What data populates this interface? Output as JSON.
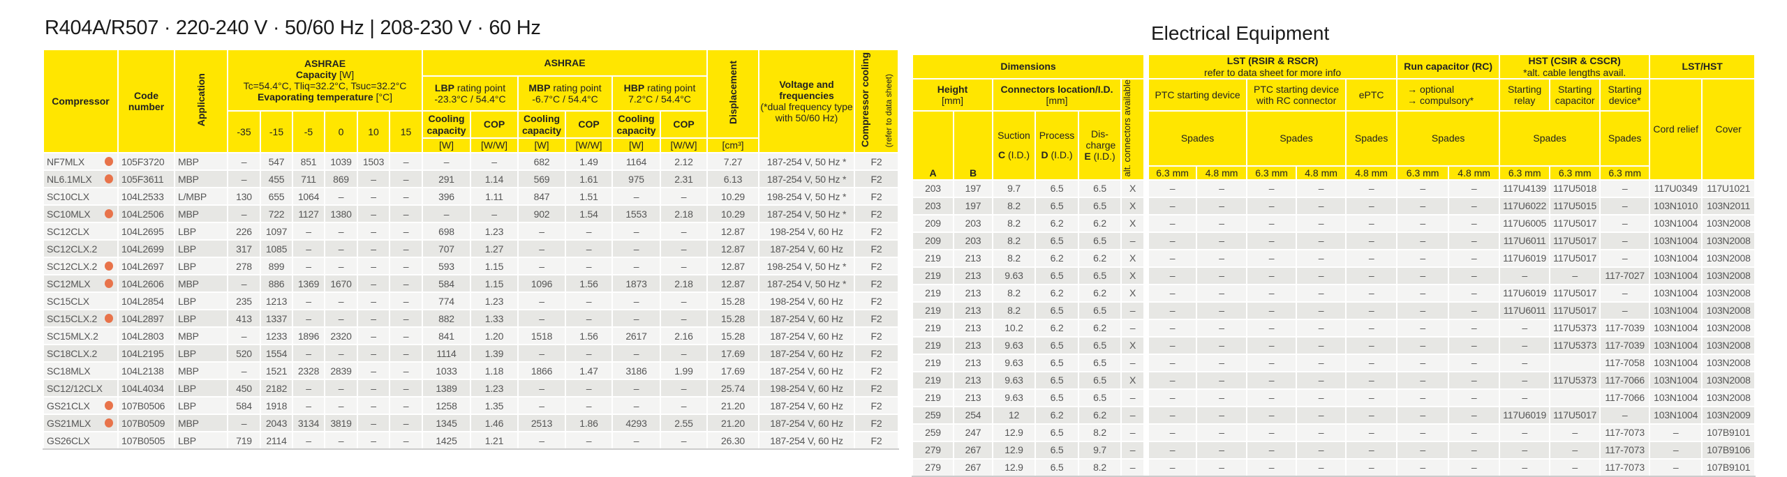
{
  "title": "R404A/R507 · 220-240 V · 50/60 Hz | 208-230 V · 60 Hz",
  "electrical_title": "Electrical Equipment",
  "colors": {
    "header": "#FFE600",
    "row_light": "#F4F4F3",
    "row_dark": "#E7E7E4",
    "dot": "#E8734A"
  },
  "lh": {
    "compressor": "Compressor",
    "code": "Code number",
    "application": "Application",
    "ashrae": "ASHRAE",
    "capacity": "Capacity",
    "unit_w": "[W]",
    "conditions": "Tc=54.4°C, Tliq=32.2°C, Tsuc=32.2°C",
    "evap": "Evaporating temperature",
    "evap_unit": "[°C]",
    "temps": [
      "-35",
      "-15",
      "-5",
      "0",
      "10",
      "15"
    ],
    "lbp": "LBP",
    "mbp": "MBP",
    "hbp": "HBP",
    "rating_point": "rating point",
    "lbp_point": "-23.3°C / 54.4°C",
    "mbp_point": "-6.7°C / 54.4°C",
    "hbp_point": "7.2°C / 54.4°C",
    "cooling_capacity": "Cooling capacity",
    "cop": "COP",
    "unit_ww": "[W/W]",
    "displacement": "Displacement",
    "disp_unit": "[cm³]",
    "voltage": "Voltage and frequencies",
    "voltage_note": "(*dual frequency type with 50/60 Hz)",
    "cooling": "Compressor cooling",
    "cooling_note": "(refer to data sheet)"
  },
  "rh": {
    "dimensions": "Dimensions",
    "height": "Height",
    "mm": "[mm]",
    "connectors": "Connectors location/I.D.",
    "alt": "alt. connectors available",
    "suction": "Suction",
    "process": "Process",
    "discharge": "Dis-charge",
    "a": "A",
    "b": "B",
    "c": "C",
    "d": "D",
    "e": "E",
    "id": "(I.D.)",
    "lst": "LST (RSIR & RSCR)",
    "lst_note": "refer to data sheet for more info",
    "ptc": "PTC starting device",
    "ptc_rc": "PTC starting device with RC connector",
    "eptc": "ePTC",
    "rc": "Run capacitor (RC)",
    "rc_optional": "→ optional",
    "rc_compulsory": "→ compulsory*",
    "hst": "HST (CSIR & CSCR)",
    "hst_note": "*alt. cable lengths avail.",
    "relay": "Starting relay",
    "capacitor": "Starting capacitor",
    "device": "Starting device*",
    "lsthst": "LST/HST",
    "cord": "Cord relief",
    "cover": "Cover",
    "spades": "Spades",
    "mm63": "6.3 mm",
    "mm48": "4.8 mm"
  },
  "compressors": [
    {
      "name": "NF7MLX",
      "dot": true,
      "values": [
        "105F3720",
        "MBP",
        "–",
        "547",
        "851",
        "1039",
        "1503",
        "–",
        "–",
        "–",
        "682",
        "1.49",
        "1164",
        "2.12",
        "7.27",
        "187-254 V, 50 Hz *",
        "F2"
      ]
    },
    {
      "name": "NL6.1MLX",
      "dot": true,
      "values": [
        "105F3611",
        "MBP",
        "–",
        "455",
        "711",
        "869",
        "–",
        "–",
        "291",
        "1.14",
        "569",
        "1.61",
        "975",
        "2.31",
        "6.13",
        "187-254 V, 50 Hz *",
        "F2"
      ]
    },
    {
      "name": "SC10CLX",
      "dot": false,
      "values": [
        "104L2533",
        "L/MBP",
        "130",
        "655",
        "1064",
        "–",
        "–",
        "–",
        "396",
        "1.11",
        "847",
        "1.51",
        "–",
        "–",
        "10.29",
        "198-254 V, 50 Hz *",
        "F2"
      ]
    },
    {
      "name": "SC10MLX",
      "dot": true,
      "values": [
        "104L2506",
        "MBP",
        "–",
        "722",
        "1127",
        "1380",
        "–",
        "–",
        "–",
        "–",
        "902",
        "1.54",
        "1553",
        "2.18",
        "10.29",
        "187-254 V, 50 Hz *",
        "F2"
      ]
    },
    {
      "name": "SC12CLX",
      "dot": false,
      "values": [
        "104L2695",
        "LBP",
        "226",
        "1097",
        "–",
        "–",
        "–",
        "–",
        "698",
        "1.23",
        "–",
        "–",
        "–",
        "–",
        "12.87",
        "198-254 V, 60 Hz",
        "F2"
      ]
    },
    {
      "name": "SC12CLX.2",
      "dot": false,
      "values": [
        "104L2699",
        "LBP",
        "317",
        "1085",
        "–",
        "–",
        "–",
        "–",
        "707",
        "1.27",
        "–",
        "–",
        "–",
        "–",
        "12.87",
        "187-254 V, 60 Hz",
        "F2"
      ]
    },
    {
      "name": "SC12CLX.2",
      "dot": true,
      "values": [
        "104L2697",
        "LBP",
        "278",
        "899",
        "–",
        "–",
        "–",
        "–",
        "593",
        "1.15",
        "–",
        "–",
        "–",
        "–",
        "12.87",
        "198-254 V, 50 Hz *",
        "F2"
      ]
    },
    {
      "name": "SC12MLX",
      "dot": true,
      "values": [
        "104L2606",
        "MBP",
        "–",
        "886",
        "1369",
        "1670",
        "–",
        "–",
        "584",
        "1.15",
        "1096",
        "1.56",
        "1873",
        "2.18",
        "12.87",
        "187-254 V, 50 Hz *",
        "F2"
      ]
    },
    {
      "name": "SC15CLX",
      "dot": false,
      "values": [
        "104L2854",
        "LBP",
        "235",
        "1213",
        "–",
        "–",
        "–",
        "–",
        "774",
        "1.23",
        "–",
        "–",
        "–",
        "–",
        "15.28",
        "198-254 V, 60 Hz",
        "F2"
      ]
    },
    {
      "name": "SC15CLX.2",
      "dot": true,
      "values": [
        "104L2897",
        "LBP",
        "413",
        "1337",
        "–",
        "–",
        "–",
        "–",
        "882",
        "1.33",
        "–",
        "–",
        "–",
        "–",
        "15.28",
        "187-254 V, 60 Hz",
        "F2"
      ]
    },
    {
      "name": "SC15MLX.2",
      "dot": false,
      "values": [
        "104L2803",
        "MBP",
        "–",
        "1233",
        "1896",
        "2320",
        "–",
        "–",
        "841",
        "1.20",
        "1518",
        "1.56",
        "2617",
        "2.16",
        "15.28",
        "187-254 V, 60 Hz",
        "F2"
      ]
    },
    {
      "name": "SC18CLX.2",
      "dot": false,
      "values": [
        "104L2195",
        "LBP",
        "520",
        "1554",
        "–",
        "–",
        "–",
        "–",
        "1114",
        "1.39",
        "–",
        "–",
        "–",
        "–",
        "17.69",
        "187-254 V, 60 Hz",
        "F2"
      ]
    },
    {
      "name": "SC18MLX",
      "dot": false,
      "values": [
        "104L2138",
        "MBP",
        "–",
        "1521",
        "2328",
        "2839",
        "–",
        "–",
        "1033",
        "1.18",
        "1866",
        "1.47",
        "3186",
        "1.99",
        "17.69",
        "187-254 V, 60 Hz",
        "F2"
      ]
    },
    {
      "name": "SC12/12CLX",
      "dot": false,
      "values": [
        "104L4034",
        "LBP",
        "450",
        "2182",
        "–",
        "–",
        "–",
        "–",
        "1389",
        "1.23",
        "–",
        "–",
        "–",
        "–",
        "25.74",
        "198-254 V, 60 Hz",
        "F2"
      ]
    },
    {
      "name": "GS21CLX",
      "dot": true,
      "values": [
        "107B0506",
        "LBP",
        "584",
        "1918",
        "–",
        "–",
        "–",
        "–",
        "1258",
        "1.35",
        "–",
        "–",
        "–",
        "–",
        "21.20",
        "187-254 V, 60 Hz",
        "F2"
      ]
    },
    {
      "name": "GS21MLX",
      "dot": true,
      "values": [
        "107B0509",
        "MBP",
        "–",
        "2043",
        "3134",
        "3819",
        "–",
        "–",
        "1345",
        "1.46",
        "2513",
        "1.86",
        "4293",
        "2.55",
        "21.20",
        "187-254 V, 60 Hz",
        "F2"
      ]
    },
    {
      "name": "GS26CLX",
      "dot": false,
      "values": [
        "107B0505",
        "LBP",
        "719",
        "2114",
        "–",
        "–",
        "–",
        "–",
        "1425",
        "1.21",
        "–",
        "–",
        "–",
        "–",
        "26.30",
        "187-254 V, 60 Hz",
        "F2"
      ]
    }
  ],
  "electrical": [
    [
      "203",
      "197",
      "9.7",
      "6.5",
      "6.5",
      "X",
      "–",
      "–",
      "–",
      "–",
      "–",
      "–",
      "–",
      "117U4139",
      "117U5018",
      "–",
      "117U0349",
      "117U1021"
    ],
    [
      "203",
      "197",
      "8.2",
      "6.5",
      "6.5",
      "X",
      "–",
      "–",
      "–",
      "–",
      "–",
      "–",
      "–",
      "117U6022",
      "117U5015",
      "–",
      "103N1010",
      "103N2011"
    ],
    [
      "209",
      "203",
      "8.2",
      "6.2",
      "6.2",
      "X",
      "–",
      "–",
      "–",
      "–",
      "–",
      "–",
      "–",
      "117U6005",
      "117U5017",
      "–",
      "103N1004",
      "103N2008"
    ],
    [
      "209",
      "203",
      "8.2",
      "6.5",
      "6.5",
      "–",
      "–",
      "–",
      "–",
      "–",
      "–",
      "–",
      "–",
      "117U6011",
      "117U5017",
      "–",
      "103N1004",
      "103N2008"
    ],
    [
      "219",
      "213",
      "8.2",
      "6.2",
      "6.2",
      "X",
      "–",
      "–",
      "–",
      "–",
      "–",
      "–",
      "–",
      "117U6019",
      "117U5017",
      "–",
      "103N1004",
      "103N2008"
    ],
    [
      "219",
      "213",
      "9.63",
      "6.5",
      "6.5",
      "X",
      "–",
      "–",
      "–",
      "–",
      "–",
      "–",
      "–",
      "–",
      "–",
      "117-7027",
      "103N1004",
      "103N2008"
    ],
    [
      "219",
      "213",
      "8.2",
      "6.2",
      "6.2",
      "X",
      "–",
      "–",
      "–",
      "–",
      "–",
      "–",
      "–",
      "117U6019",
      "117U5017",
      "–",
      "103N1004",
      "103N2008"
    ],
    [
      "219",
      "213",
      "8.2",
      "6.5",
      "6.5",
      "–",
      "–",
      "–",
      "–",
      "–",
      "–",
      "–",
      "–",
      "117U6011",
      "117U5017",
      "–",
      "103N1004",
      "103N2008"
    ],
    [
      "219",
      "213",
      "10.2",
      "6.2",
      "6.2",
      "–",
      "–",
      "–",
      "–",
      "–",
      "–",
      "–",
      "–",
      "–",
      "117U5373",
      "117-7039",
      "103N1004",
      "103N2008"
    ],
    [
      "219",
      "213",
      "9.63",
      "6.5",
      "6.5",
      "X",
      "–",
      "–",
      "–",
      "–",
      "–",
      "–",
      "–",
      "–",
      "117U5373",
      "117-7039",
      "103N1004",
      "103N2008"
    ],
    [
      "219",
      "213",
      "9.63",
      "6.5",
      "6.5",
      "–",
      "–",
      "–",
      "–",
      "–",
      "–",
      "–",
      "–",
      "–",
      "",
      "117-7058",
      "103N1004",
      "103N2008"
    ],
    [
      "219",
      "213",
      "9.63",
      "6.5",
      "6.5",
      "X",
      "–",
      "–",
      "–",
      "–",
      "–",
      "–",
      "–",
      "–",
      "117U5373",
      "117-7066",
      "103N1004",
      "103N2008"
    ],
    [
      "219",
      "213",
      "9.63",
      "6.5",
      "6.5",
      "–",
      "–",
      "–",
      "–",
      "–",
      "–",
      "–",
      "–",
      "–",
      "",
      "117-7066",
      "103N1004",
      "103N2008"
    ],
    [
      "259",
      "254",
      "12",
      "6.2",
      "6.2",
      "–",
      "–",
      "–",
      "–",
      "–",
      "–",
      "–",
      "–",
      "117U6019",
      "117U5017",
      "–",
      "103N1004",
      "103N2009"
    ],
    [
      "259",
      "247",
      "12.9",
      "6.5",
      "8.2",
      "–",
      "–",
      "–",
      "–",
      "–",
      "–",
      "–",
      "–",
      "–",
      "–",
      "117-7073",
      "–",
      "107B9101"
    ],
    [
      "279",
      "267",
      "12.9",
      "6.5",
      "9.7",
      "–",
      "–",
      "–",
      "–",
      "–",
      "–",
      "–",
      "–",
      "–",
      "–",
      "117-7073",
      "–",
      "107B9106"
    ],
    [
      "279",
      "267",
      "12.9",
      "6.5",
      "8.2",
      "–",
      "–",
      "–",
      "–",
      "–",
      "–",
      "–",
      "–",
      "–",
      "–",
      "117-7073",
      "–",
      "107B9101"
    ]
  ]
}
